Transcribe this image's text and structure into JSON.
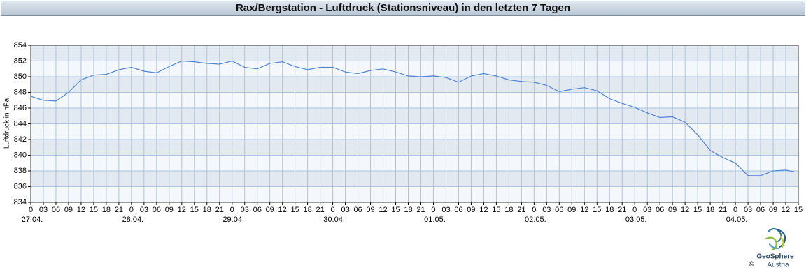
{
  "chart_data": {
    "type": "line",
    "title": "Rax/Bergstation - Luftdruck (Stationsniveau) in den letzten 7 Tagen",
    "y_label": "Luftdruck in hPa",
    "x": [
      0,
      3,
      6,
      9,
      12,
      15,
      18,
      21,
      24,
      27,
      30,
      33,
      36,
      39,
      42,
      45,
      48,
      51,
      54,
      57,
      60,
      63,
      66,
      69,
      72,
      75,
      78,
      81,
      84,
      87,
      90,
      93,
      96,
      99,
      102,
      105,
      108,
      111,
      114,
      117,
      120,
      123,
      126,
      129,
      132,
      135,
      138,
      141,
      144,
      147,
      150,
      153,
      156,
      159,
      162,
      165,
      168,
      171,
      174,
      177,
      180,
      182
    ],
    "series": [
      {
        "name": "Luftdruck",
        "color": "#4f86d8",
        "values": [
          847.5,
          847.0,
          846.9,
          848.0,
          849.6,
          850.2,
          850.3,
          850.9,
          851.2,
          850.7,
          850.5,
          851.3,
          852.0,
          851.9,
          851.7,
          851.6,
          852.0,
          851.2,
          851.0,
          851.7,
          851.9,
          851.3,
          850.9,
          851.2,
          851.2,
          850.6,
          850.4,
          850.8,
          851.0,
          850.6,
          850.1,
          850.0,
          850.1,
          849.9,
          849.3,
          850.1,
          850.4,
          850.1,
          849.6,
          849.4,
          849.3,
          848.9,
          848.1,
          848.4,
          848.6,
          848.2,
          847.2,
          846.6,
          846.1,
          845.4,
          844.8,
          844.9,
          844.2,
          842.6,
          840.6,
          839.7,
          839.0,
          837.4,
          837.4,
          838.0,
          838.1,
          837.9
        ]
      }
    ],
    "xlim": [
      0,
      183
    ],
    "ylim": [
      834,
      854
    ],
    "yticks": [
      834,
      836,
      838,
      840,
      842,
      844,
      846,
      848,
      850,
      852,
      854
    ],
    "xticks": [
      0,
      {
        "value": 3,
        "label": "03"
      },
      {
        "value": 6,
        "label": "06"
      },
      {
        "value": 9,
        "label": "09"
      },
      12,
      15,
      18,
      21,
      {
        "value": 24,
        "label": "0"
      },
      {
        "value": 27,
        "label": "03"
      },
      {
        "value": 30,
        "label": "06"
      },
      {
        "value": 33,
        "label": "09"
      },
      {
        "value": 36,
        "label": "12"
      },
      {
        "value": 39,
        "label": "15"
      },
      {
        "value": 42,
        "label": "18"
      },
      {
        "value": 45,
        "label": "21"
      },
      {
        "value": 48,
        "label": "0"
      },
      {
        "value": 51,
        "label": "03"
      },
      {
        "value": 54,
        "label": "06"
      },
      {
        "value": 57,
        "label": "09"
      },
      {
        "value": 60,
        "label": "12"
      },
      {
        "value": 63,
        "label": "15"
      },
      {
        "value": 66,
        "label": "18"
      },
      {
        "value": 69,
        "label": "21"
      },
      {
        "value": 72,
        "label": "0"
      },
      {
        "value": 75,
        "label": "03"
      },
      {
        "value": 78,
        "label": "06"
      },
      {
        "value": 81,
        "label": "09"
      },
      {
        "value": 84,
        "label": "12"
      },
      {
        "value": 87,
        "label": "15"
      },
      {
        "value": 90,
        "label": "18"
      },
      {
        "value": 93,
        "label": "21"
      },
      {
        "value": 96,
        "label": "0"
      },
      {
        "value": 99,
        "label": "03"
      },
      {
        "value": 102,
        "label": "06"
      },
      {
        "value": 105,
        "label": "09"
      },
      {
        "value": 108,
        "label": "12"
      },
      {
        "value": 111,
        "label": "15"
      },
      {
        "value": 114,
        "label": "18"
      },
      {
        "value": 117,
        "label": "21"
      },
      {
        "value": 120,
        "label": "0"
      },
      {
        "value": 123,
        "label": "03"
      },
      {
        "value": 126,
        "label": "06"
      },
      {
        "value": 129,
        "label": "09"
      },
      {
        "value": 132,
        "label": "12"
      },
      {
        "value": 135,
        "label": "15"
      },
      {
        "value": 138,
        "label": "18"
      },
      {
        "value": 141,
        "label": "21"
      },
      {
        "value": 144,
        "label": "0"
      },
      {
        "value": 147,
        "label": "03"
      },
      {
        "value": 150,
        "label": "06"
      },
      {
        "value": 153,
        "label": "09"
      },
      {
        "value": 156,
        "label": "12"
      },
      {
        "value": 159,
        "label": "15"
      },
      {
        "value": 162,
        "label": "18"
      },
      {
        "value": 165,
        "label": "21"
      },
      {
        "value": 168,
        "label": "0"
      },
      {
        "value": 171,
        "label": "03"
      },
      {
        "value": 174,
        "label": "06"
      },
      {
        "value": 177,
        "label": "09"
      },
      {
        "value": 180,
        "label": "12"
      },
      {
        "value": 183,
        "label": "15"
      }
    ],
    "date_labels": [
      {
        "value": 0,
        "label": "27.04."
      },
      {
        "value": 24,
        "label": "28.04."
      },
      {
        "value": 48,
        "label": "29.04."
      },
      {
        "value": 72,
        "label": "30.04."
      },
      {
        "value": 96,
        "label": "01.05."
      },
      {
        "value": 120,
        "label": "02.05."
      },
      {
        "value": 144,
        "label": "03.05."
      },
      {
        "value": 168,
        "label": "04.05."
      }
    ],
    "grid": true,
    "band_colors": [
      "#e3e9f1",
      "#f4f7fb"
    ],
    "grid_color": "#a9c5e2"
  },
  "logo": {
    "name": "GeoSphere",
    "sub": "Austria",
    "copyright": "©"
  }
}
